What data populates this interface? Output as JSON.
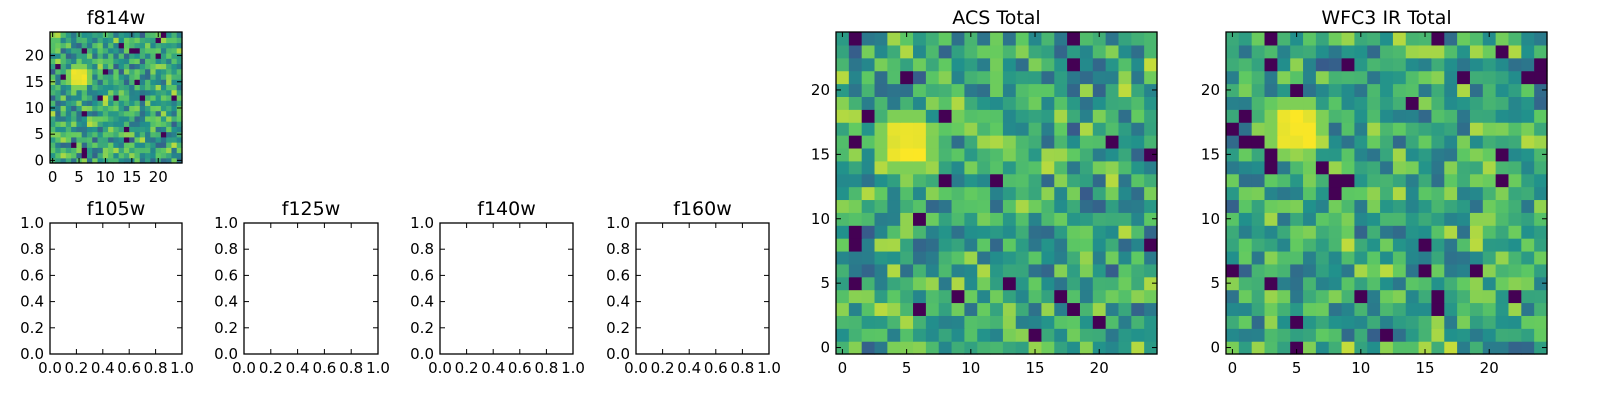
{
  "figure_title": "",
  "chart_data": [
    {
      "type": "heatmap",
      "title": "f814w",
      "grid_size": [
        25,
        25
      ],
      "xlim": [
        -0.5,
        24.5
      ],
      "ylim": [
        -0.5,
        24.5
      ],
      "xticks": [
        0,
        5,
        10,
        15,
        20
      ],
      "yticks": [
        0,
        5,
        10,
        15,
        20
      ],
      "colormap": "viridis",
      "hotspot": {
        "x": 5,
        "y": 16,
        "value": 1.0
      },
      "note": "noise image with bright source near (5,16)"
    },
    {
      "type": "heatmap",
      "title": "ACS Total",
      "grid_size": [
        25,
        25
      ],
      "xlim": [
        -0.5,
        24.5
      ],
      "ylim": [
        -0.5,
        24.5
      ],
      "xticks": [
        0,
        5,
        10,
        15,
        20
      ],
      "yticks": [
        0,
        5,
        10,
        15,
        20
      ],
      "colormap": "viridis",
      "hotspot": {
        "x": 5,
        "y": 16,
        "value": 1.0
      }
    },
    {
      "type": "heatmap",
      "title": "WFC3 IR Total",
      "grid_size": [
        25,
        25
      ],
      "xlim": [
        -0.5,
        24.5
      ],
      "ylim": [
        -0.5,
        24.5
      ],
      "xticks": [
        0,
        5,
        10,
        15,
        20
      ],
      "yticks": [
        0,
        5,
        10,
        15,
        20
      ],
      "colormap": "viridis",
      "hotspot": {
        "x": 5,
        "y": 17,
        "value": 1.0
      }
    },
    {
      "type": "empty",
      "title": "f105w",
      "xlim": [
        0,
        1
      ],
      "ylim": [
        0,
        1
      ],
      "xticks": [
        "0.0",
        "0.2",
        "0.4",
        "0.6",
        "0.8",
        "1.0"
      ],
      "yticks": [
        "0.0",
        "0.2",
        "0.4",
        "0.6",
        "0.8",
        "1.0"
      ]
    },
    {
      "type": "empty",
      "title": "f125w",
      "xlim": [
        0,
        1
      ],
      "ylim": [
        0,
        1
      ],
      "xticks": [
        "0.0",
        "0.2",
        "0.4",
        "0.6",
        "0.8",
        "1.0"
      ],
      "yticks": [
        "0.0",
        "0.2",
        "0.4",
        "0.6",
        "0.8",
        "1.0"
      ]
    },
    {
      "type": "empty",
      "title": "f140w",
      "xlim": [
        0,
        1
      ],
      "ylim": [
        0,
        1
      ],
      "xticks": [
        "0.0",
        "0.2",
        "0.4",
        "0.6",
        "0.8",
        "1.0"
      ],
      "yticks": [
        "0.0",
        "0.2",
        "0.4",
        "0.6",
        "0.8",
        "1.0"
      ]
    },
    {
      "type": "empty",
      "title": "f160w",
      "xlim": [
        0,
        1
      ],
      "ylim": [
        0,
        1
      ],
      "xticks": [
        "0.0",
        "0.2",
        "0.4",
        "0.6",
        "0.8",
        "1.0"
      ],
      "yticks": [
        "0.0",
        "0.2",
        "0.4",
        "0.6",
        "0.8",
        "1.0"
      ]
    }
  ],
  "colors": {
    "viridis": [
      "#440154",
      "#3b528b",
      "#21918c",
      "#5ec962",
      "#fde725"
    ]
  }
}
